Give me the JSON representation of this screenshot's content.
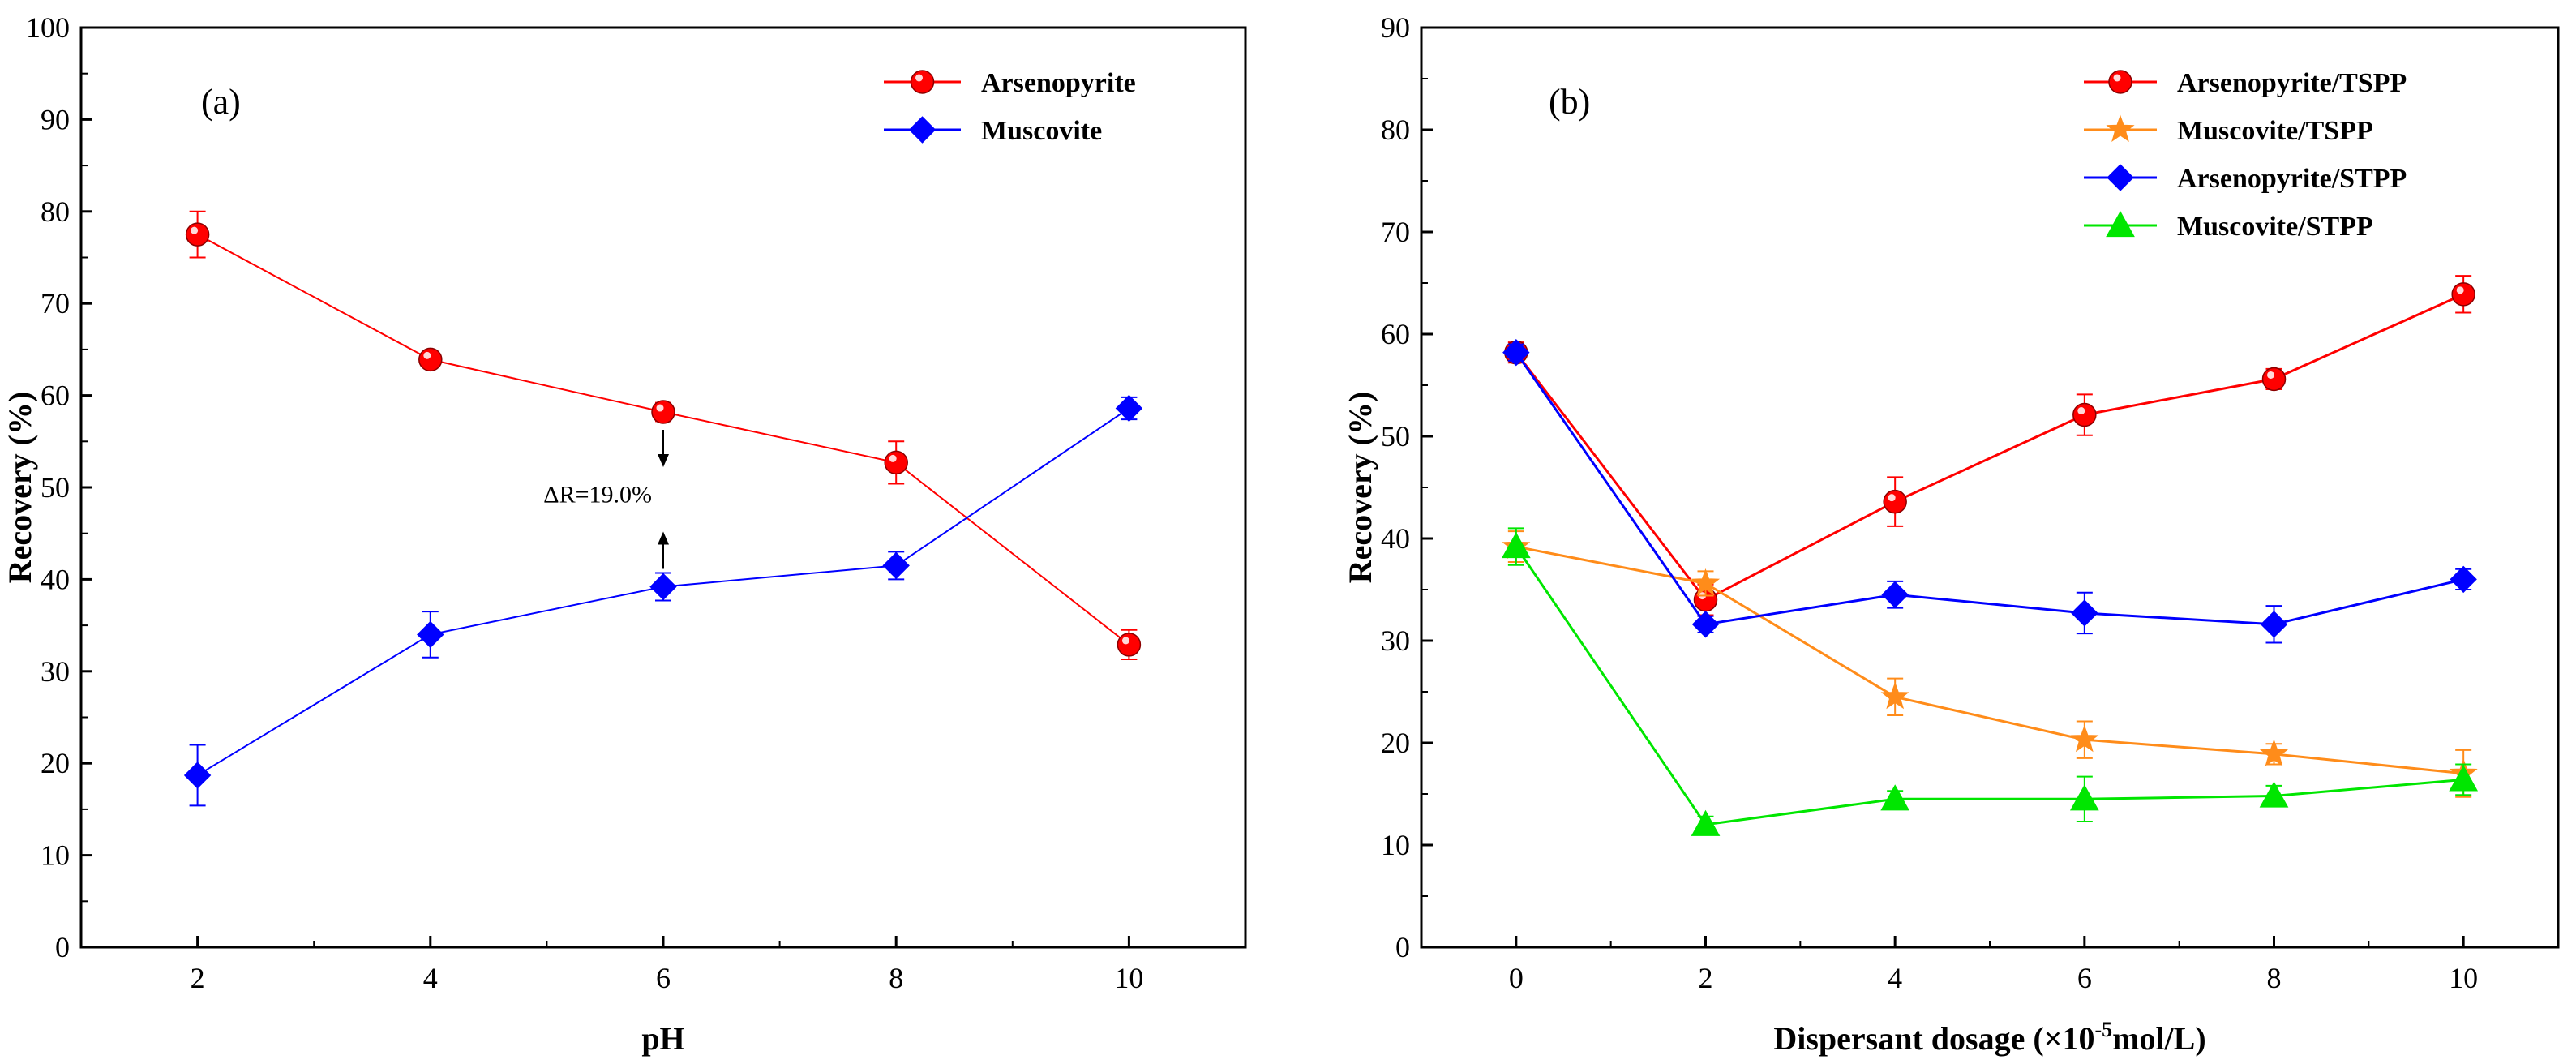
{
  "chart_data": [
    {
      "panel": "(a)",
      "type": "line",
      "xlabel": "pH",
      "ylabel": "Recovery  (%)",
      "xlim": [
        1,
        11
      ],
      "ylim": [
        0,
        100
      ],
      "x_ticks": [
        2,
        4,
        6,
        8,
        10
      ],
      "y_ticks": [
        0,
        10,
        20,
        30,
        40,
        50,
        60,
        70,
        80,
        90,
        100
      ],
      "grid": false,
      "legend_position": "top-right",
      "series": [
        {
          "name": "Arsenopyrite",
          "color": "#ff0000",
          "marker": "circle",
          "x": [
            2,
            4,
            6,
            8,
            10
          ],
          "y": [
            77.5,
            63.9,
            58.2,
            52.7,
            32.9
          ],
          "err": [
            2.5,
            0.8,
            1.0,
            2.3,
            1.6
          ]
        },
        {
          "name": "Muscovite",
          "color": "#0000ff",
          "marker": "diamond",
          "x": [
            2,
            4,
            6,
            8,
            10
          ],
          "y": [
            18.7,
            34.0,
            39.2,
            41.5,
            58.6
          ],
          "err": [
            3.3,
            2.5,
            1.5,
            1.5,
            1.2
          ]
        }
      ],
      "annotation": {
        "text": "ΔR=19.0%",
        "x": 6,
        "from": 58.2,
        "to": 39.2
      }
    },
    {
      "panel": "(b)",
      "type": "line",
      "xlabel_main": "Dispersant dosage (×10",
      "xlabel_sup": "-5",
      "xlabel_end": "mol/L)",
      "ylabel": "Recovery  (%)",
      "xlim": [
        -1,
        11
      ],
      "ylim": [
        0,
        90
      ],
      "x_ticks": [
        0,
        2,
        4,
        6,
        8,
        10
      ],
      "y_ticks": [
        0,
        10,
        20,
        30,
        40,
        50,
        60,
        70,
        80,
        90
      ],
      "grid": false,
      "legend_position": "top-right",
      "series": [
        {
          "name": "Arsenopyrite/TSPP",
          "color": "#ff0000",
          "marker": "circle",
          "x": [
            0,
            2,
            4,
            6,
            8,
            10
          ],
          "y": [
            58.2,
            34.0,
            43.6,
            52.1,
            55.6,
            63.9
          ],
          "err": [
            1.0,
            1.5,
            2.4,
            2.0,
            1.0,
            1.8
          ]
        },
        {
          "name": "Muscovite/TSPP",
          "color": "#ff8c1a",
          "marker": "star",
          "x": [
            0,
            2,
            4,
            6,
            8,
            10
          ],
          "y": [
            39.2,
            35.6,
            24.5,
            20.3,
            18.9,
            17.0
          ],
          "err": [
            1.5,
            1.2,
            1.8,
            1.8,
            1.0,
            2.3
          ]
        },
        {
          "name": "Arsenopyrite/STPP",
          "color": "#0000ff",
          "marker": "diamond",
          "x": [
            0,
            2,
            4,
            6,
            8,
            10
          ],
          "y": [
            58.2,
            31.6,
            34.5,
            32.7,
            31.6,
            36.0
          ],
          "err": [
            0.8,
            0.8,
            1.3,
            2.0,
            1.8,
            1.0
          ]
        },
        {
          "name": "Muscovite/STPP",
          "color": "#00e600",
          "marker": "triangle",
          "x": [
            0,
            2,
            4,
            6,
            8,
            10
          ],
          "y": [
            39.2,
            12.0,
            14.5,
            14.5,
            14.8,
            16.4
          ],
          "err": [
            1.8,
            0.8,
            0.8,
            2.2,
            1.0,
            1.5
          ]
        }
      ]
    }
  ]
}
